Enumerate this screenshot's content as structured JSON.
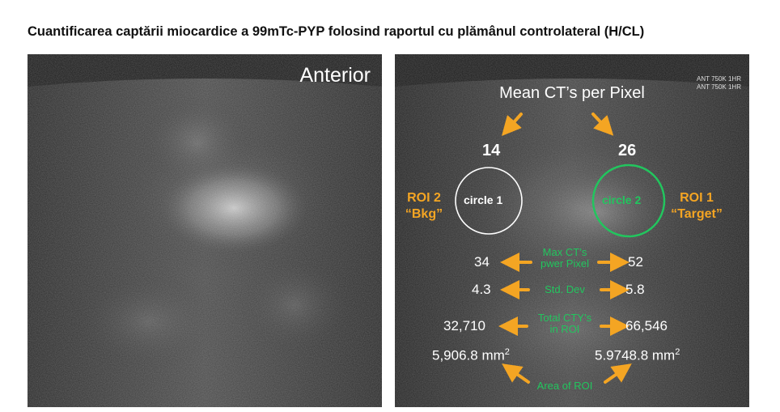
{
  "title": "Cuantificarea captării miocardice a 99mTc-PYP folosind raportul cu plămânul controlateral (H/CL)",
  "left_panel": {
    "view_label": "Anterior"
  },
  "right_panel": {
    "header": "Mean CT’s per Pixel",
    "corner_tag": [
      "ANT 750K 1HR",
      "ANT 750K 1HR"
    ],
    "roi2": {
      "name": "ROI 2",
      "sub": "“Bkg”",
      "circle_label": "circle 1",
      "mean": "14",
      "max": "34",
      "std": "4.3",
      "total": "32,710",
      "area": "5,906.8 mm"
    },
    "roi1": {
      "name": "ROI 1",
      "sub": "“Target”",
      "circle_label": "circle 2",
      "mean": "26",
      "max": "52",
      "std": "5.8",
      "total": "66,546",
      "area": "5.9748.8 mm"
    },
    "area_superscript": "2",
    "labels": {
      "max_line1": "Max CT’s",
      "max_line2": "pwer Pixel",
      "std": "Std. Dev",
      "total_line1": "Total CTY’s",
      "total_line2": "in  ROI",
      "area": "Area of ROI"
    },
    "colors": {
      "arrow": "#f4a523",
      "green": "#22c55e",
      "white_circle": "#ffffff"
    }
  }
}
